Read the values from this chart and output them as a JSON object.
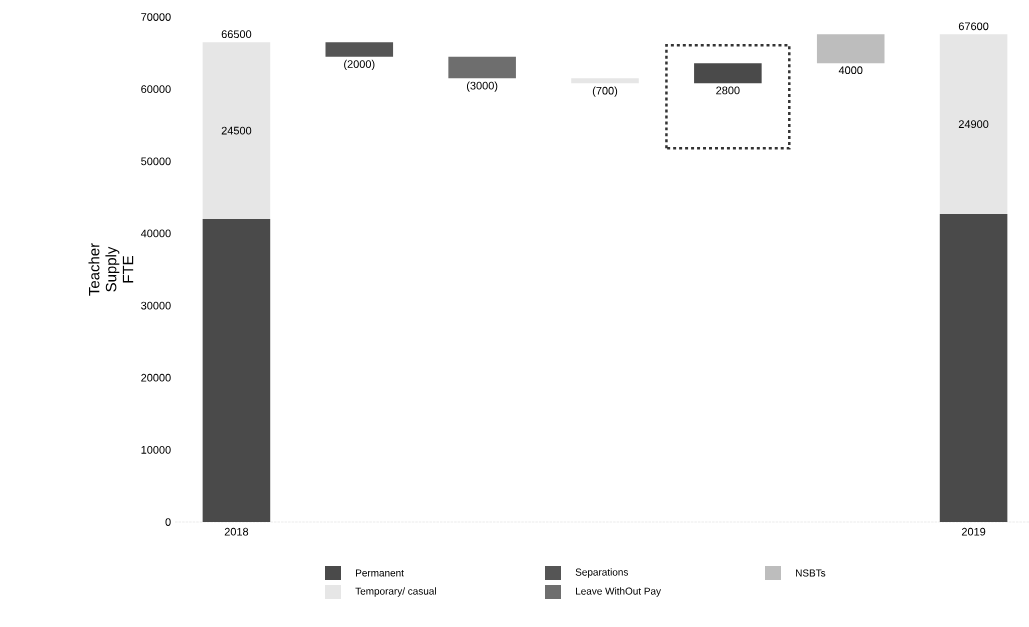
{
  "chart_data": {
    "type": "bar",
    "ylabel": "Teacher Supply FTE",
    "categories": [
      "2018",
      null,
      null,
      null,
      null,
      null,
      "2019"
    ],
    "series": [
      {
        "name": "Permanent",
        "color": "#4a4a4a",
        "values": [
          42000,
          null,
          null,
          null,
          2800,
          null,
          42700
        ],
        "base": [
          0,
          null,
          null,
          null,
          60800,
          null,
          0
        ],
        "value_labels": [
          null,
          null,
          null,
          null,
          "2800",
          null,
          null
        ]
      },
      {
        "name": "Temporary/ casual",
        "color": "#e6e6e6",
        "values": [
          24500,
          null,
          null,
          -700,
          null,
          null,
          24900
        ],
        "base": [
          42000,
          null,
          null,
          61500,
          null,
          null,
          42700
        ],
        "value_labels": [
          "24500",
          null,
          null,
          "(700)",
          null,
          null,
          "24900"
        ]
      },
      {
        "name": "Separations",
        "color": "#555555",
        "values": [
          null,
          -2000,
          null,
          null,
          null,
          null,
          null
        ],
        "base": [
          null,
          66500,
          null,
          null,
          null,
          null,
          null
        ],
        "value_labels": [
          null,
          "(2000)",
          null,
          null,
          null,
          null,
          null
        ]
      },
      {
        "name": "Leave WithOut Pay",
        "color": "#6e6e6e",
        "values": [
          null,
          null,
          -3000,
          null,
          null,
          null,
          null
        ],
        "base": [
          null,
          null,
          64500,
          null,
          null,
          null,
          null
        ],
        "value_labels": [
          null,
          null,
          "(3000)",
          null,
          null,
          null,
          null
        ]
      },
      {
        "name": "NSBTs",
        "color": "#bdbdbd",
        "values": [
          null,
          null,
          null,
          null,
          null,
          4000,
          null
        ],
        "base": [
          null,
          null,
          null,
          null,
          null,
          63600,
          null
        ],
        "value_labels": [
          null,
          null,
          null,
          null,
          null,
          "4000",
          null
        ]
      }
    ],
    "totals": [
      "66500",
      null,
      null,
      null,
      null,
      null,
      "67600"
    ],
    "ylim": [
      0,
      70000
    ],
    "yticks": [
      0,
      10000,
      20000,
      30000,
      40000,
      50000,
      60000,
      70000
    ],
    "grid": false,
    "legend": "bottom"
  }
}
